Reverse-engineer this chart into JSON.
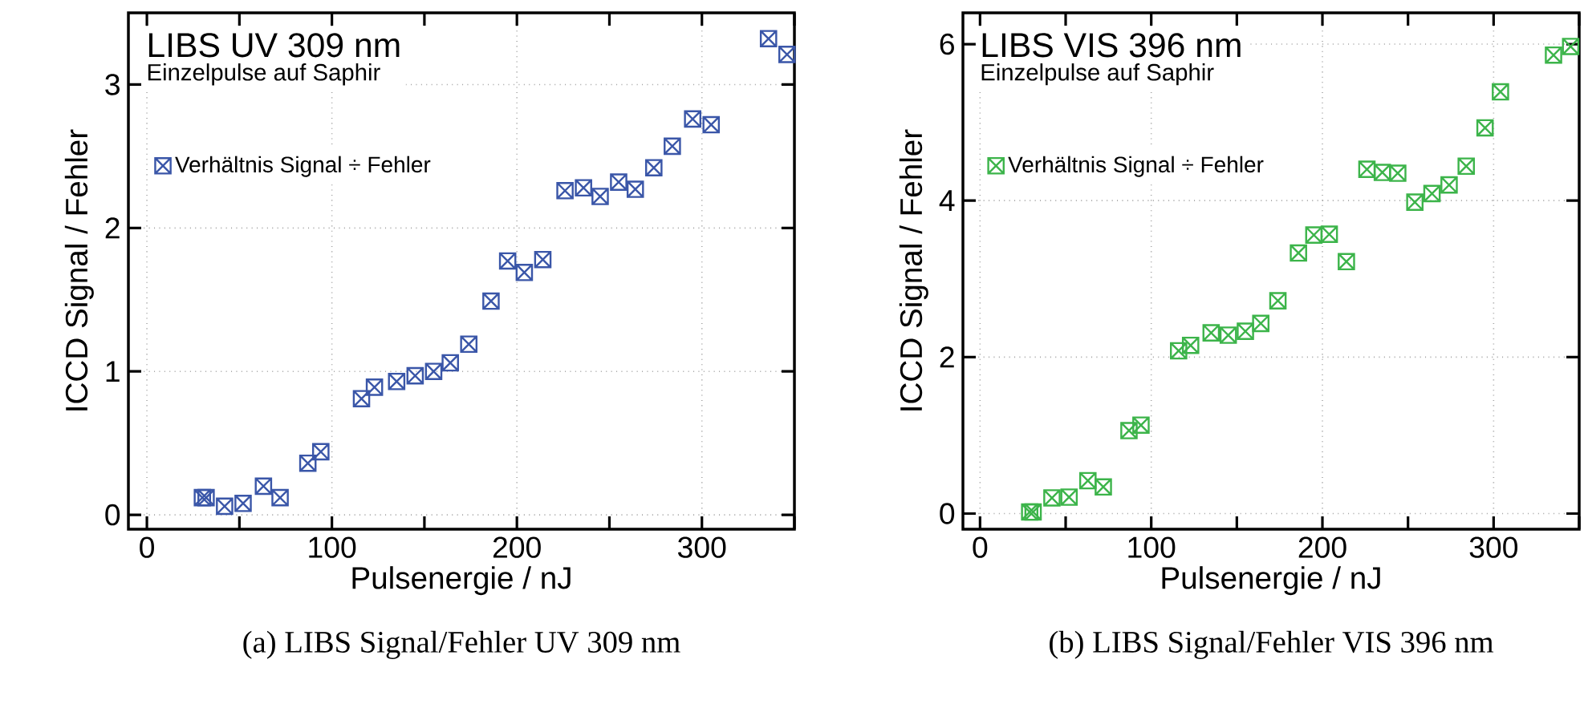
{
  "chart_data": [
    {
      "type": "scatter",
      "title": "LIBS UV 309 nm",
      "subtitle": "Einzelpulse auf Saphir",
      "xlabel": "Pulsenergie / nJ",
      "ylabel": "ICCD Signal / Fehler",
      "x": [
        30,
        32,
        42,
        52,
        63,
        72,
        87,
        94,
        116,
        123,
        135,
        145,
        155,
        164,
        174,
        186,
        195,
        204,
        214,
        226,
        236,
        245,
        255,
        264,
        274,
        284,
        295,
        305,
        336,
        346
      ],
      "series": [
        {
          "name": "Verhältnis Signal ÷ Fehler",
          "color": "#3a56a8",
          "values": [
            0.12,
            0.12,
            0.06,
            0.08,
            0.2,
            0.12,
            0.36,
            0.44,
            0.81,
            0.89,
            0.93,
            0.97,
            1.0,
            1.06,
            1.19,
            1.49,
            1.77,
            1.69,
            1.78,
            2.26,
            2.28,
            2.22,
            2.32,
            2.27,
            2.42,
            2.57,
            2.76,
            2.72,
            3.32,
            3.21
          ]
        }
      ],
      "xlim": [
        -10,
        350
      ],
      "ylim": [
        -0.1,
        3.5
      ],
      "xticks": [
        0,
        {
          "value": 50,
          "label": null
        },
        100,
        {
          "value": 150,
          "label": null
        },
        200,
        {
          "value": 250,
          "label": null
        },
        300,
        {
          "value": 350,
          "label": null
        }
      ],
      "yticks": [
        0,
        1,
        2,
        3
      ],
      "grid": true,
      "legend": "top left",
      "marker": "cross",
      "annotations": [
        "(a) LIBS Signal/Fehler UV 309 nm"
      ]
    },
    {
      "type": "scatter",
      "title": "LIBS VIS 396 nm",
      "subtitle": "Einzelpulse auf Saphir",
      "xlabel": "Pulsenergie / nJ",
      "ylabel": "ICCD Signal / Fehler",
      "x": [
        29,
        31,
        42,
        52,
        63,
        72,
        87,
        94,
        116,
        123,
        135,
        145,
        155,
        164,
        174,
        186,
        195,
        204,
        214,
        226,
        235,
        244,
        254,
        264,
        274,
        284,
        295,
        304,
        335,
        345
      ],
      "series": [
        {
          "name": "Verhältnis Signal ÷ Fehler",
          "color": "#3cb44a",
          "values": [
            0.02,
            0.02,
            0.2,
            0.21,
            0.42,
            0.34,
            1.06,
            1.13,
            2.08,
            2.15,
            2.31,
            2.28,
            2.33,
            2.43,
            2.72,
            3.33,
            3.56,
            3.57,
            3.22,
            4.4,
            4.36,
            4.35,
            3.98,
            4.09,
            4.2,
            4.44,
            4.93,
            5.39,
            5.86,
            5.97
          ]
        }
      ],
      "xlim": [
        -10,
        350
      ],
      "ylim": [
        -0.2,
        6.4
      ],
      "xticks": [
        0,
        {
          "value": 50,
          "label": null
        },
        100,
        {
          "value": 150,
          "label": null
        },
        200,
        {
          "value": 250,
          "label": null
        },
        300,
        {
          "value": 350,
          "label": null
        }
      ],
      "yticks": [
        0,
        2,
        4,
        6
      ],
      "grid": true,
      "legend": "top left",
      "marker": "cross",
      "annotations": [
        "(b) LIBS Signal/Fehler VIS 396 nm"
      ]
    }
  ]
}
